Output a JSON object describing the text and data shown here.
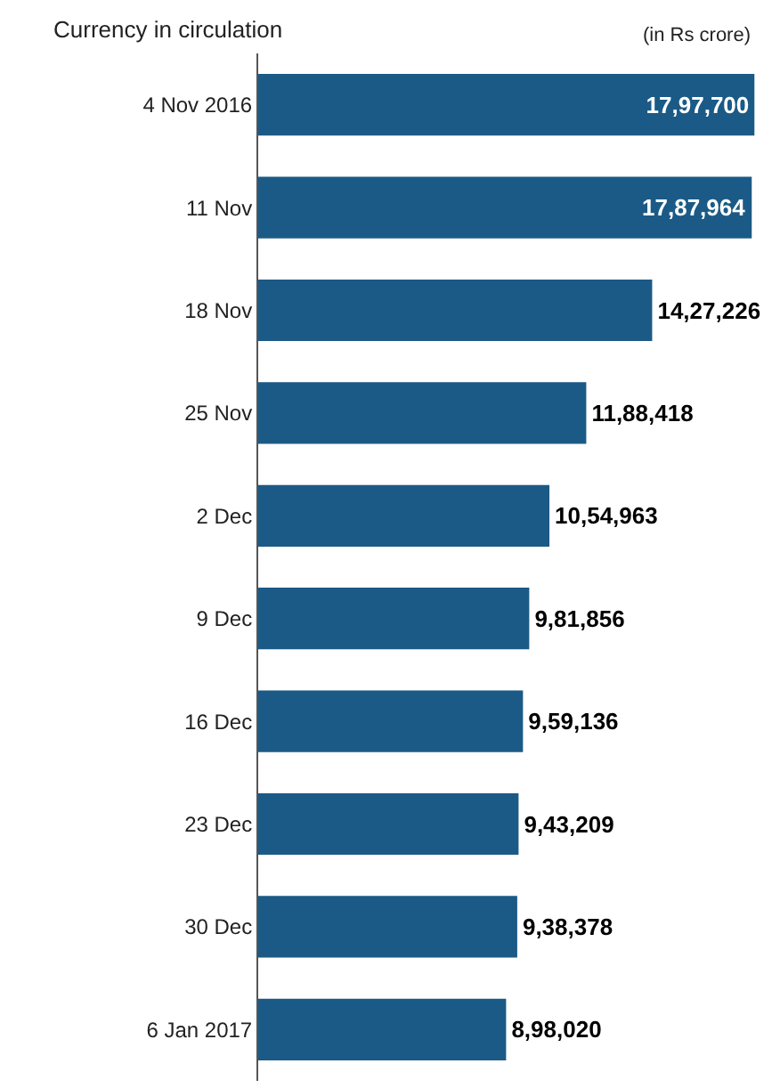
{
  "chart_data": {
    "type": "bar",
    "orientation": "horizontal",
    "title": "Currency in circulation",
    "subtitle": "(in Rs crore)",
    "categories": [
      "4 Nov 2016",
      "11 Nov",
      "18 Nov",
      "25 Nov",
      "2 Dec",
      "9 Dec",
      "16 Dec",
      "23 Dec",
      "30 Dec",
      "6 Jan 2017"
    ],
    "values": [
      1797700,
      1787964,
      1427226,
      1188418,
      1054963,
      981856,
      959136,
      943209,
      938378,
      898020
    ],
    "value_labels": [
      "17,97,700",
      "17,87,964",
      "14,27,226",
      "11,88,418",
      "10,54,963",
      "9,81,856",
      "9,59,136",
      "9,43,209",
      "9,38,378",
      "8,98,020"
    ],
    "color": "#1b5a86",
    "xlim": [
      0,
      1800000
    ],
    "tick_labels": "y"
  }
}
